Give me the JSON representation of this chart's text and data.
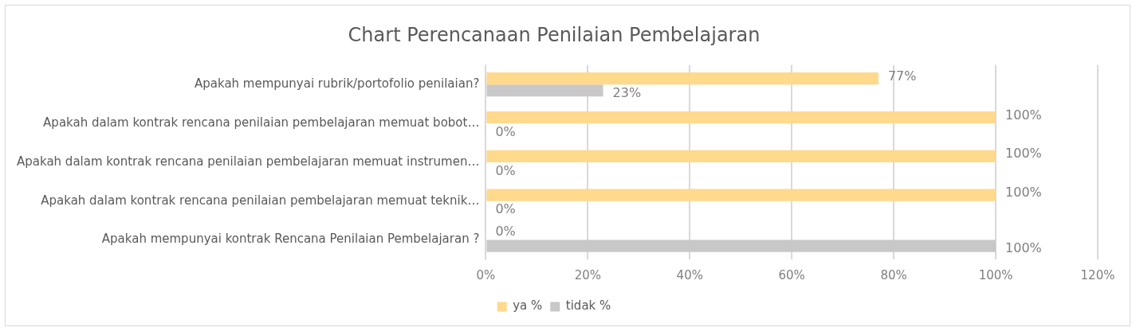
{
  "chart_data": {
    "type": "bar",
    "orientation": "horizontal",
    "title": "Chart Perencanaan Penilaian Pembelajaran",
    "categories": [
      "Apakah mempunyai rubrik/portofolio penilaian?",
      "Apakah dalam kontrak rencana penilaian pembelajaran memuat bobot…",
      "Apakah dalam kontrak rencana penilaian pembelajaran memuat instrumen…",
      "Apakah dalam kontrak rencana penilaian pembelajaran memuat teknik…",
      "Apakah mempunyai kontrak Rencana Penilaian Pembelajaran ?"
    ],
    "series": [
      {
        "name": "ya %",
        "color": "#ffd98c",
        "values": [
          77,
          100,
          100,
          100,
          0
        ],
        "value_labels": [
          "77%",
          "100%",
          "100%",
          "100%",
          "0%"
        ]
      },
      {
        "name": "tidak %",
        "color": "#c8c8c8",
        "values": [
          23,
          0,
          0,
          0,
          100
        ],
        "value_labels": [
          "23%",
          "0%",
          "0%",
          "0%",
          "100%"
        ]
      }
    ],
    "xlim": [
      0,
      120
    ],
    "xticks": [
      {
        "value": 0,
        "label": "0%"
      },
      {
        "value": 20,
        "label": "20%"
      },
      {
        "value": 40,
        "label": "40%"
      },
      {
        "value": 60,
        "label": "60%"
      },
      {
        "value": 80,
        "label": "80%"
      },
      {
        "value": 100,
        "label": "100%"
      },
      {
        "value": 120,
        "label": "120%"
      }
    ],
    "grid": "x",
    "legend": "bottom"
  }
}
